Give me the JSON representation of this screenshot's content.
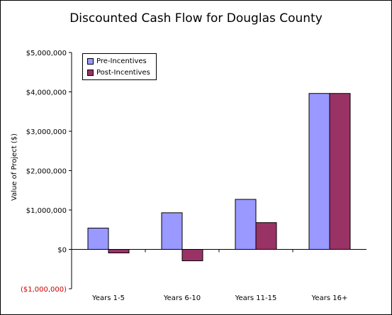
{
  "chart_data": {
    "type": "bar",
    "title": "Discounted Cash Flow for Douglas County",
    "xlabel": "",
    "ylabel": "Value of Project ($)",
    "categories": [
      "Years 1-5",
      "Years 6-10",
      "Years 11-15",
      "Years 16+"
    ],
    "series": [
      {
        "name": "Pre-Incentives",
        "color": "#9999ff",
        "values": [
          540000,
          930000,
          1270000,
          3960000
        ]
      },
      {
        "name": "Post-Incentives",
        "color": "#993366",
        "values": [
          -90000,
          -290000,
          680000,
          3960000
        ]
      }
    ],
    "ylim": [
      -1000000,
      5000000
    ],
    "yticks": [
      {
        "value": 5000000,
        "label": "$5,000,000"
      },
      {
        "value": 4000000,
        "label": "$4,000,000"
      },
      {
        "value": 3000000,
        "label": "$3,000,000"
      },
      {
        "value": 2000000,
        "label": "$2,000,000"
      },
      {
        "value": 1000000,
        "label": "$1,000,000"
      },
      {
        "value": 0,
        "label": "$0"
      },
      {
        "value": -1000000,
        "label": "($1,000,000)",
        "color": "#cc0000"
      }
    ],
    "grid": false,
    "legend_position": "top-left"
  }
}
